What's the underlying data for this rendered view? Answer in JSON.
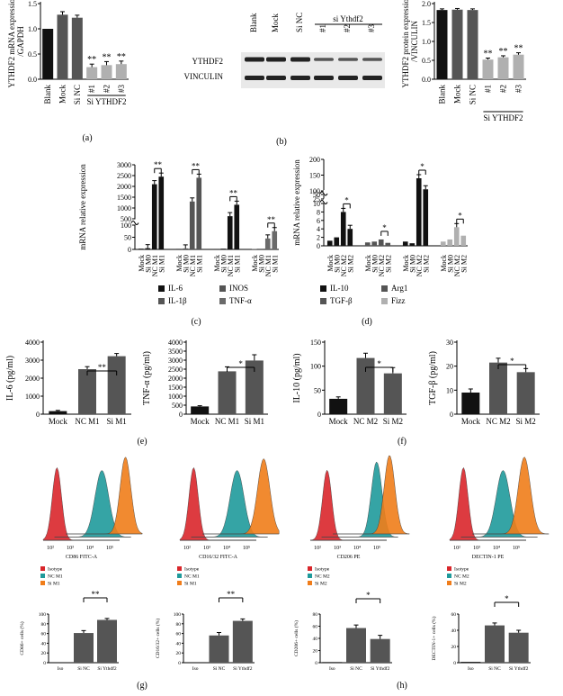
{
  "panel_labels": [
    "(a)",
    "(b)",
    "(c)",
    "(d)",
    "(e)",
    "(f)",
    "(g)",
    "(h)"
  ],
  "sig": {
    "single": "*",
    "double": "**"
  },
  "western": {
    "lanes": [
      "Blank",
      "Mock",
      "Si NC",
      "#1",
      "#2",
      "#3"
    ],
    "group": "si Ythdf2",
    "rows": [
      "YTHDF2",
      "VINCULIN"
    ]
  },
  "colors": {
    "black": "#111111",
    "dark": "#555555",
    "light": "#b0b0b0",
    "mid": "#6a6a6a",
    "isotype": "#d9262b",
    "nc": "#1f9a9b",
    "si": "#f07d1a"
  },
  "chart_data": [
    {
      "id": "a",
      "type": "bar",
      "ylabel": "YTHDF2 mRNA expression/GAPDH",
      "ylabel_lines": [
        "YTHDF2 mRNA expression",
        "/GAPDH"
      ],
      "categories": [
        "Blank",
        "Mock",
        "Si NC",
        "#1",
        "#2",
        "#3"
      ],
      "group_label": "Si YTHDF2",
      "values": [
        1.0,
        1.28,
        1.22,
        0.24,
        0.28,
        0.3
      ],
      "errors": [
        0.0,
        0.06,
        0.05,
        0.06,
        0.07,
        0.06
      ],
      "ylim": [
        0,
        1.5
      ],
      "sig": [
        "",
        "",
        "",
        "**",
        "**",
        "**"
      ]
    },
    {
      "id": "b",
      "type": "bar",
      "ylabel": "YTHDF2 protein expression/VINCULIN",
      "ylabel_lines": [
        "YTHDF2 protein expression",
        "/VINCULIN"
      ],
      "categories": [
        "Blank",
        "Mock",
        "Si NC",
        "#1",
        "#2",
        "#3"
      ],
      "group_label": "Si YTHDF2",
      "values": [
        1.83,
        1.84,
        1.83,
        0.52,
        0.58,
        0.65
      ],
      "errors": [
        0.03,
        0.03,
        0.03,
        0.04,
        0.04,
        0.05
      ],
      "ylim": [
        0,
        2
      ],
      "sig": [
        "",
        "",
        "",
        "**",
        "**",
        "**"
      ]
    },
    {
      "id": "c",
      "type": "bar",
      "ylabel": "mRNA relative expression",
      "categories": [
        "Mock",
        "Si M0",
        "NC M1",
        "Si M1"
      ],
      "series": [
        {
          "name": "IL-6",
          "values": [
            3,
            5,
            2100,
            2450
          ]
        },
        {
          "name": "IL-1β",
          "values": [
            3,
            4,
            1300,
            2400
          ]
        },
        {
          "name": "INOS",
          "values": [
            2,
            3,
            620,
            1150
          ]
        },
        {
          "name": "TNF-α",
          "values": [
            2,
            3,
            45,
            75
          ]
        }
      ],
      "ticks": [
        "0",
        "50",
        "100",
        "500",
        "1000",
        "1500",
        "2000",
        "2500",
        "3000"
      ],
      "sig_label": "**"
    },
    {
      "id": "d",
      "type": "bar",
      "ylabel": "mRNA relative expression",
      "categories": [
        "Mock",
        "Si M0",
        "NC M2",
        "Si M2"
      ],
      "series": [
        {
          "name": "IL-10",
          "values": [
            1.2,
            2.0,
            8.0,
            4.0
          ]
        },
        {
          "name": "Arg1",
          "values": [
            0.8,
            1.0,
            1.5,
            0.7
          ]
        },
        {
          "name": "TGF-β",
          "values": [
            1.0,
            0.6,
            140,
            105
          ]
        },
        {
          "name": "Fizz",
          "values": [
            1.0,
            1.5,
            4.4,
            2.4
          ]
        }
      ],
      "ticks": [
        "0",
        "2",
        "4",
        "6",
        "8",
        "10",
        "25",
        "50",
        "100",
        "150",
        "200"
      ],
      "sig_label": "*"
    },
    {
      "id": "e1",
      "type": "bar",
      "ylabel": "IL-6 (pg/ml)",
      "categories": [
        "Mock",
        "NC M1",
        "Si M1"
      ],
      "values": [
        170,
        2500,
        3220
      ],
      "errors": [
        40,
        140,
        150
      ],
      "ylim": [
        0,
        4000
      ],
      "ticks": [
        "0",
        "1000",
        "2000",
        "3000",
        "4000"
      ],
      "sig_label": "**"
    },
    {
      "id": "e2",
      "type": "bar",
      "ylabel": "TNF-α (pg/ml)",
      "categories": [
        "Mock",
        "NC M1",
        "Si M1"
      ],
      "values": [
        430,
        2380,
        2980
      ],
      "errors": [
        40,
        250,
        320
      ],
      "ylim": [
        0,
        4000
      ],
      "ticks": [
        "0",
        "500",
        "1000",
        "1500",
        "2000",
        "2500",
        "3000",
        "3500",
        "4000"
      ],
      "sig_label": "*"
    },
    {
      "id": "f1",
      "type": "bar",
      "ylabel": "IL-10 (pg/ml)",
      "categories": [
        "Mock",
        "NC M2",
        "Si M2"
      ],
      "values": [
        32,
        117,
        85
      ],
      "errors": [
        4,
        10,
        12
      ],
      "ylim": [
        0,
        150
      ],
      "ticks": [
        "0",
        "50",
        "100",
        "150"
      ],
      "sig_label": "*"
    },
    {
      "id": "f2",
      "type": "bar",
      "ylabel": "TGF-β (pg/ml)",
      "categories": [
        "Mock",
        "NC M2",
        "Si M2"
      ],
      "values": [
        9,
        21.5,
        17.5
      ],
      "errors": [
        1.5,
        1.8,
        1.5
      ],
      "ylim": [
        0,
        30
      ],
      "ticks": [
        "0",
        "10",
        "20",
        "30"
      ],
      "sig_label": "*"
    },
    {
      "id": "flow1",
      "type": "histogram",
      "xlabel": "CD86 FITC-A",
      "legend": [
        "Isotype",
        "NC M1",
        "Si M1"
      ]
    },
    {
      "id": "flow2",
      "type": "histogram",
      "xlabel": "CD16/32 FITC-A",
      "legend": [
        "Isotype",
        "NC M1",
        "Si M1"
      ]
    },
    {
      "id": "flow3",
      "type": "histogram",
      "xlabel": "CD206 PE",
      "legend": [
        "Isotype",
        "NC M2",
        "Si M2"
      ]
    },
    {
      "id": "flow4",
      "type": "histogram",
      "xlabel": "DECTIN-1 PE",
      "legend": [
        "Isotype",
        "NC M2",
        "Si M2"
      ]
    },
    {
      "id": "g1",
      "type": "bar",
      "ylabel": "CD86+ cells (%)",
      "categories": [
        "Iso",
        "Si NC",
        "Si Ythdf2"
      ],
      "values": [
        1,
        61,
        88
      ],
      "errors": [
        0.5,
        5,
        3
      ],
      "ylim": [
        0,
        100
      ],
      "ticks": [
        "0",
        "20",
        "40",
        "60",
        "80",
        "100"
      ],
      "sig_label": "**"
    },
    {
      "id": "g2",
      "type": "bar",
      "ylabel": "CD16/32+ cells (%)",
      "categories": [
        "Iso",
        "Si NC",
        "Si Ythdf2"
      ],
      "values": [
        1,
        56,
        86
      ],
      "errors": [
        0.5,
        6,
        4
      ],
      "ylim": [
        0,
        100
      ],
      "ticks": [
        "0",
        "20",
        "40",
        "60",
        "80",
        "100"
      ],
      "sig_label": "**"
    },
    {
      "id": "h1",
      "type": "bar",
      "ylabel": "CD206+ cells (%)",
      "categories": [
        "Iso",
        "Si NC",
        "Si Ythdf2"
      ],
      "values": [
        1,
        57,
        39
      ],
      "errors": [
        0.5,
        5,
        6
      ],
      "ylim": [
        0,
        80
      ],
      "ticks": [
        "0",
        "20",
        "40",
        "60",
        "80"
      ],
      "sig_label": "*"
    },
    {
      "id": "h2",
      "type": "bar",
      "ylabel": "DECTIN-1+ cells (%)",
      "categories": [
        "Iso",
        "Si NC",
        "Si Ythdf2"
      ],
      "values": [
        1,
        46,
        37
      ],
      "errors": [
        0.5,
        3,
        3
      ],
      "ylim": [
        0,
        60
      ],
      "ticks": [
        "0",
        "20",
        "40",
        "60"
      ],
      "sig_label": "*"
    }
  ]
}
